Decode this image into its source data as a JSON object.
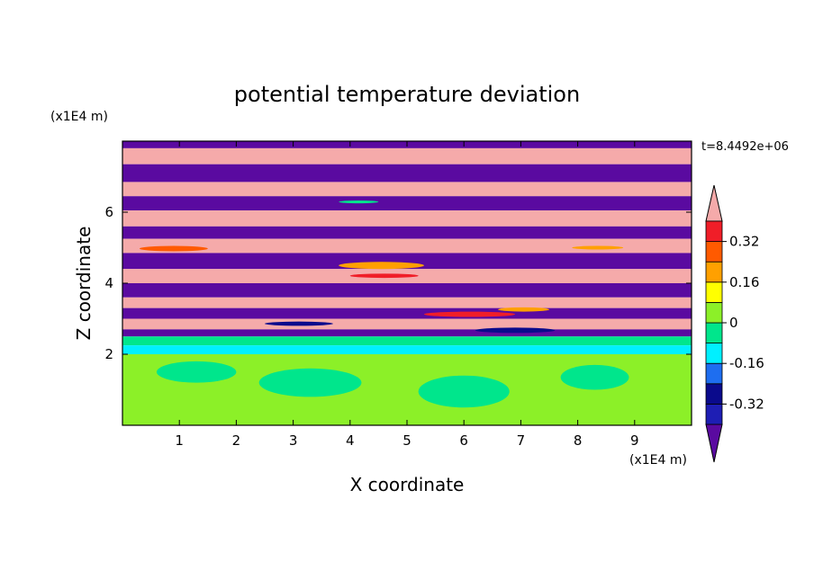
{
  "chart_data": {
    "type": "heatmap",
    "title": "potential temperature deviation",
    "xlabel": "X coordinate",
    "ylabel": "Z coordinate",
    "x_unit": "(x1E4 m)",
    "y_unit": "(x1E4 m)",
    "timestamp": "t=8.4492e+06",
    "xlim": [
      0,
      10
    ],
    "ylim": [
      0,
      8
    ],
    "x_ticks": [
      1,
      2,
      3,
      4,
      5,
      6,
      7,
      8,
      9
    ],
    "y_ticks": [
      2,
      4,
      6
    ],
    "grid": false,
    "colorbar": {
      "placement": "right",
      "levels": [
        -0.4,
        -0.32,
        -0.24,
        -0.16,
        -0.08,
        0,
        0.08,
        0.16,
        0.24,
        0.32,
        0.4
      ],
      "colors": [
        "#5a0aa0",
        "#1e1eb4",
        "#0a0a8c",
        "#1e6ef0",
        "#00f0ff",
        "#00e68c",
        "#8cf028",
        "#ffff00",
        "#ffa000",
        "#ff5a00",
        "#f01e28",
        "#f5aaaa"
      ],
      "tick_labels": [
        "0.32",
        "0.16",
        "0",
        "-0.16",
        "-0.32"
      ],
      "tick_values": [
        0.32,
        0.16,
        0,
        -0.16,
        -0.32
      ],
      "extend": "both"
    },
    "bands_note": "",
    "layers": [
      {
        "z0": 7.8,
        "z1": 8.0,
        "class": 0
      },
      {
        "z0": 7.35,
        "z1": 7.8,
        "class": 11
      },
      {
        "z0": 6.85,
        "z1": 7.35,
        "class": 0
      },
      {
        "z0": 6.45,
        "z1": 6.85,
        "class": 11
      },
      {
        "z0": 6.05,
        "z1": 6.45,
        "class": 0
      },
      {
        "z0": 5.6,
        "z1": 6.05,
        "class": 11
      },
      {
        "z0": 5.25,
        "z1": 5.6,
        "class": 0
      },
      {
        "z0": 4.85,
        "z1": 5.25,
        "class": 11
      },
      {
        "z0": 4.4,
        "z1": 4.85,
        "class": 0
      },
      {
        "z0": 4.0,
        "z1": 4.4,
        "class": 11
      },
      {
        "z0": 3.6,
        "z1": 4.0,
        "class": 0
      },
      {
        "z0": 3.3,
        "z1": 3.6,
        "class": 11
      },
      {
        "z0": 3.0,
        "z1": 3.3,
        "class": 0
      },
      {
        "z0": 2.7,
        "z1": 3.0,
        "class": 11
      },
      {
        "z0": 2.5,
        "z1": 2.7,
        "class": 0
      },
      {
        "z0": 2.25,
        "z1": 2.5,
        "class": 5
      },
      {
        "z0": 2.0,
        "z1": 2.25,
        "class": 4
      },
      {
        "z0": 0.0,
        "z1": 2.0,
        "class": 6
      }
    ],
    "patches": [
      {
        "x": 0.3,
        "z": 4.9,
        "w": 1.2,
        "h": 0.15,
        "class": 9
      },
      {
        "x": 3.8,
        "z": 4.4,
        "w": 1.5,
        "h": 0.2,
        "class": 8
      },
      {
        "x": 4.0,
        "z": 4.15,
        "w": 1.2,
        "h": 0.12,
        "class": 10
      },
      {
        "x": 5.3,
        "z": 3.05,
        "w": 1.6,
        "h": 0.15,
        "class": 10
      },
      {
        "x": 6.6,
        "z": 3.2,
        "w": 0.9,
        "h": 0.12,
        "class": 8
      },
      {
        "x": 2.5,
        "z": 2.8,
        "w": 1.2,
        "h": 0.12,
        "class": 2
      },
      {
        "x": 6.2,
        "z": 2.6,
        "w": 1.4,
        "h": 0.15,
        "class": 2
      },
      {
        "x": 0.6,
        "z": 1.2,
        "w": 1.4,
        "h": 0.6,
        "class": 5
      },
      {
        "x": 2.4,
        "z": 0.8,
        "w": 1.8,
        "h": 0.8,
        "class": 5
      },
      {
        "x": 5.2,
        "z": 0.5,
        "w": 1.6,
        "h": 0.9,
        "class": 5
      },
      {
        "x": 7.7,
        "z": 1.0,
        "w": 1.2,
        "h": 0.7,
        "class": 5
      },
      {
        "x": 3.8,
        "z": 6.25,
        "w": 0.7,
        "h": 0.08,
        "class": 5
      },
      {
        "x": 7.9,
        "z": 4.95,
        "w": 0.9,
        "h": 0.1,
        "class": 8
      }
    ]
  }
}
